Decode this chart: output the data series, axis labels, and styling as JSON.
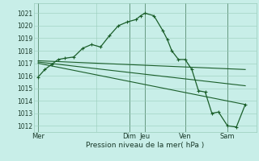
{
  "bg_color": "#c8eee8",
  "grid_color": "#99ccbb",
  "line_color": "#1a5e2a",
  "xlabel": "Pression niveau de la mer( hPa )",
  "ylim": [
    1011.5,
    1021.8
  ],
  "xlim": [
    0,
    100
  ],
  "yticks": [
    1012,
    1013,
    1014,
    1015,
    1016,
    1017,
    1018,
    1019,
    1020,
    1021
  ],
  "xtick_positions": [
    2,
    28,
    43,
    50,
    68,
    87
  ],
  "xtick_labels": [
    "Mer",
    "",
    "Dim",
    "Jeu",
    "Ven",
    "Sam"
  ],
  "vline_positions": [
    2,
    43,
    50,
    68,
    87
  ],
  "series_main": {
    "x": [
      2,
      5,
      8,
      11,
      14,
      18,
      22,
      26,
      30,
      34,
      38,
      42,
      46,
      48,
      50,
      54,
      58,
      60,
      62,
      65,
      68,
      71,
      74,
      77,
      80,
      83,
      87,
      91,
      95
    ],
    "y": [
      1015.9,
      1016.5,
      1016.9,
      1017.3,
      1017.4,
      1017.5,
      1018.2,
      1018.5,
      1018.3,
      1019.2,
      1020.0,
      1020.3,
      1020.5,
      1020.8,
      1021.0,
      1020.8,
      1019.6,
      1018.9,
      1018.0,
      1017.3,
      1017.3,
      1016.5,
      1014.8,
      1014.7,
      1013.0,
      1013.1,
      1012.0,
      1011.9,
      1013.7
    ]
  },
  "series_flat1": {
    "x": [
      2,
      95
    ],
    "y": [
      1017.2,
      1016.5
    ]
  },
  "series_flat2": {
    "x": [
      2,
      95
    ],
    "y": [
      1017.1,
      1015.2
    ]
  },
  "series_flat3": {
    "x": [
      2,
      95
    ],
    "y": [
      1017.0,
      1013.7
    ]
  }
}
